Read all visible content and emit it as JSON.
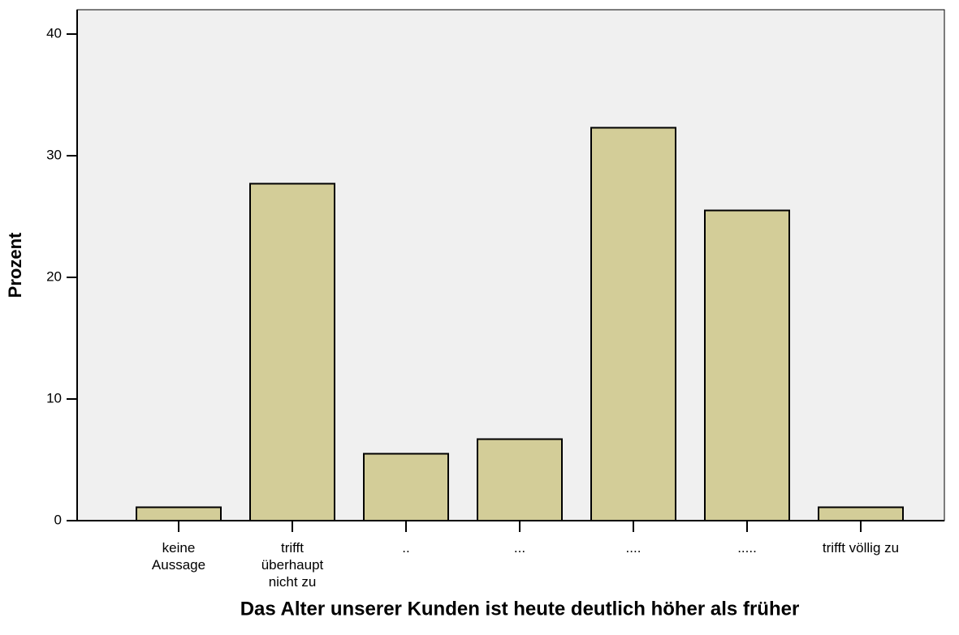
{
  "chart_data": {
    "type": "bar",
    "title": "Das Alter unserer Kunden ist heute deutlich höher als früher",
    "y_label": "Prozent",
    "categories": [
      "keine\nAussage",
      "trifft\nüberhaupt\nnicht zu",
      "..",
      "...",
      "....",
      ".....",
      "trifft völlig zu"
    ],
    "values": [
      1.1,
      27.7,
      5.5,
      6.7,
      32.3,
      25.5,
      1.1
    ],
    "color": "#d3cd98",
    "ylim": [
      0,
      42
    ],
    "yticks": [
      0,
      10,
      20,
      30,
      40
    ],
    "grid": false
  }
}
